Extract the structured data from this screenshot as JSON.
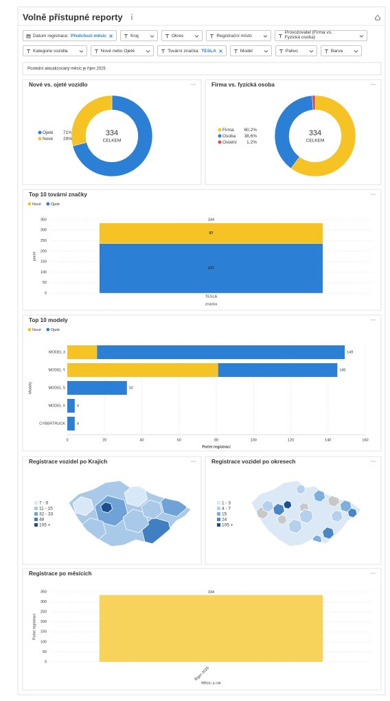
{
  "header": {
    "title": "Volně přístupné reporty"
  },
  "filters": [
    {
      "label": "Datum registrace:",
      "value": "Předchozí měsíc"
    },
    {
      "label": "Kraj"
    },
    {
      "label": "Okres"
    },
    {
      "label": "Registrační místo"
    },
    {
      "label": "Provozovatel (Firma vs. Fyzická osoba)"
    },
    {
      "label": "Kategorie vozidla"
    },
    {
      "label": "Nové nebo Ojeté"
    },
    {
      "label": "Tovární značka:",
      "value": "TESLA"
    },
    {
      "label": "Model"
    },
    {
      "label": "Palivo"
    },
    {
      "label": "Barva"
    }
  ],
  "notice": "Poslední aktualizovaný měsíc je říjen 2025",
  "chart_data": [
    {
      "type": "donut",
      "title": "Nové vs. ojeté vozidlo",
      "categories": [
        "Ojeté",
        "Nové"
      ],
      "values": [
        71,
        29
      ],
      "value_labels": [
        "71%",
        "29%"
      ],
      "colors": [
        "#2b7fd4",
        "#f5c324"
      ],
      "total": 334,
      "total_label": "CELKEM"
    },
    {
      "type": "donut",
      "title": "Firma vs. fyzická osoba",
      "categories": [
        "Firma",
        "Osoba",
        "Ostatní"
      ],
      "values": [
        60.2,
        38.6,
        1.2
      ],
      "value_labels": [
        "60,2%",
        "38,6%",
        "1,2%"
      ],
      "colors": [
        "#f5c324",
        "#2b7fd4",
        "#e0474c"
      ],
      "total": 334,
      "total_label": "CELKEM"
    },
    {
      "type": "bar",
      "title": "Top 10 tovární značky",
      "stacked": true,
      "categories": [
        "TESLA"
      ],
      "series": [
        {
          "name": "Nové",
          "color": "#f5c324",
          "values": [
            97
          ]
        },
        {
          "name": "Ojeté",
          "color": "#2b7fd4",
          "values": [
            237
          ]
        }
      ],
      "totals": [
        334
      ],
      "y_label": "pocet",
      "x_label": "znacka",
      "ylim": [
        0,
        350
      ],
      "yticks": [
        0,
        50,
        100,
        150,
        200,
        250,
        300,
        350
      ],
      "grid": true
    },
    {
      "type": "hbar",
      "title": "Top 10 modely",
      "stacked": true,
      "categories": [
        "MODEL 3",
        "MODEL Y",
        "MODEL S",
        "MODEL X",
        "CYBERTRUCK"
      ],
      "series": [
        {
          "name": "Nové",
          "color": "#f5c324",
          "values": [
            16,
            81,
            0,
            0,
            0
          ]
        },
        {
          "name": "Ojeté",
          "color": "#2b7fd4",
          "values": [
            133,
            64,
            32,
            4,
            4
          ]
        }
      ],
      "totals": [
        149,
        145,
        32,
        4,
        4
      ],
      "y_label": "Modely",
      "x_label": "Počet registrací",
      "xlim": [
        0,
        160
      ],
      "xticks": [
        0,
        20,
        40,
        60,
        80,
        100,
        120,
        140,
        160
      ],
      "grid": true
    },
    {
      "type": "map",
      "title": "Registrace vozidel po Krajích",
      "legend": [
        {
          "label": "7 - 9",
          "color": "#d9e8f6"
        },
        {
          "label": "11 - 15",
          "color": "#a9c9e9"
        },
        {
          "label": "32 - 33",
          "color": "#6fa3d8"
        },
        {
          "label": "48",
          "color": "#3f7fc2"
        },
        {
          "label": "105 +",
          "color": "#1c4f8f"
        }
      ]
    },
    {
      "type": "map",
      "title": "Registrace vozidel po okresech",
      "legend": [
        {
          "label": "1 - 3",
          "color": "#dbe9f7"
        },
        {
          "label": "4 - 7",
          "color": "#b4d0ec"
        },
        {
          "label": "15",
          "color": "#7eaedc"
        },
        {
          "label": "24",
          "color": "#4a86c6"
        },
        {
          "label": "105 +",
          "color": "#1c4f8f"
        }
      ]
    },
    {
      "type": "bar",
      "title": "Registrace po měsících",
      "categories": [
        "Říjen 2025"
      ],
      "values": [
        334
      ],
      "color": "#f7d35c",
      "y_label": "Počet registrací",
      "x_label": "Měsíc a rok",
      "ylim": [
        0,
        350
      ],
      "yticks": [
        0,
        50,
        100,
        150,
        200,
        250,
        300,
        350
      ],
      "grid": true
    }
  ]
}
